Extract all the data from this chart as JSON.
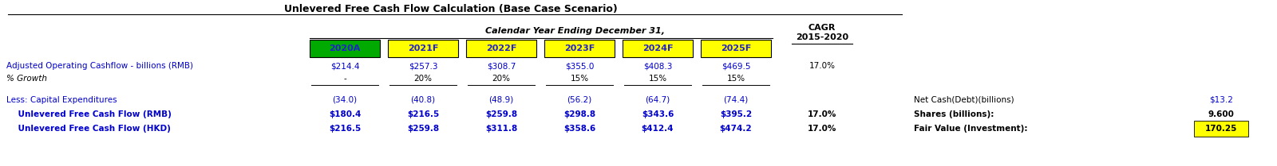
{
  "title": "Unlevered Free Cash Flow Calculation (Base Case Scenario)",
  "subtitle": "Calendar Year Ending December 31,",
  "cagr_label": "CAGR\n2015-2020",
  "col_headers": [
    "2020A",
    "2021F",
    "2022F",
    "2023F",
    "2024F",
    "2025F"
  ],
  "col_header_colors": [
    "#00aa00",
    "#ffff00",
    "#ffff00",
    "#ffff00",
    "#ffff00",
    "#ffff00"
  ],
  "col_header_text_color": "#2222cc",
  "rows": [
    {
      "label": "Adjusted Operating Cashflow - billions (RMB)",
      "values": [
        "$214.4",
        "$257.3",
        "$308.7",
        "$355.0",
        "$408.3",
        "$469.5"
      ],
      "cagr": "17.0%",
      "bold": false,
      "italic": false,
      "color": "#0000cc",
      "underline_after": false
    },
    {
      "label": "% Growth",
      "values": [
        "-",
        "20%",
        "20%",
        "15%",
        "15%",
        "15%"
      ],
      "cagr": "",
      "bold": false,
      "italic": true,
      "color": "#000000",
      "underline_after": true
    },
    {
      "label": "Less: Capital Expenditures",
      "values": [
        "(34.0)",
        "(40.8)",
        "(48.9)",
        "(56.2)",
        "(64.7)",
        "(74.4)"
      ],
      "cagr": "",
      "bold": false,
      "italic": false,
      "color": "#0000cc",
      "underline_after": false
    },
    {
      "label": "    Unlevered Free Cash Flow (RMB)",
      "values": [
        "$180.4",
        "$216.5",
        "$259.8",
        "$298.8",
        "$343.6",
        "$395.2"
      ],
      "cagr": "17.0%",
      "bold": true,
      "italic": false,
      "color": "#0000cc",
      "underline_after": false
    },
    {
      "label": "    Unlevered Free Cash Flow (HKD)",
      "values": [
        "$216.5",
        "$259.8",
        "$311.8",
        "$358.6",
        "$412.4",
        "$474.2"
      ],
      "cagr": "17.0%",
      "bold": true,
      "italic": false,
      "color": "#0000cc",
      "underline_after": false
    }
  ],
  "side_labels": [
    "Net Cash(Debt)(billions)",
    "Shares (billions):",
    "Fair Value (Investment):"
  ],
  "side_values": [
    "$13.2",
    "9.600",
    "170.25"
  ],
  "side_value_colors": [
    "#0000cc",
    "#000000",
    "#000000"
  ],
  "side_highlight": [
    false,
    false,
    true
  ],
  "highlight_color": "#ffff00",
  "bg_color": "#ffffff",
  "text_color_blue": "#0000cc",
  "text_color_black": "#000000"
}
